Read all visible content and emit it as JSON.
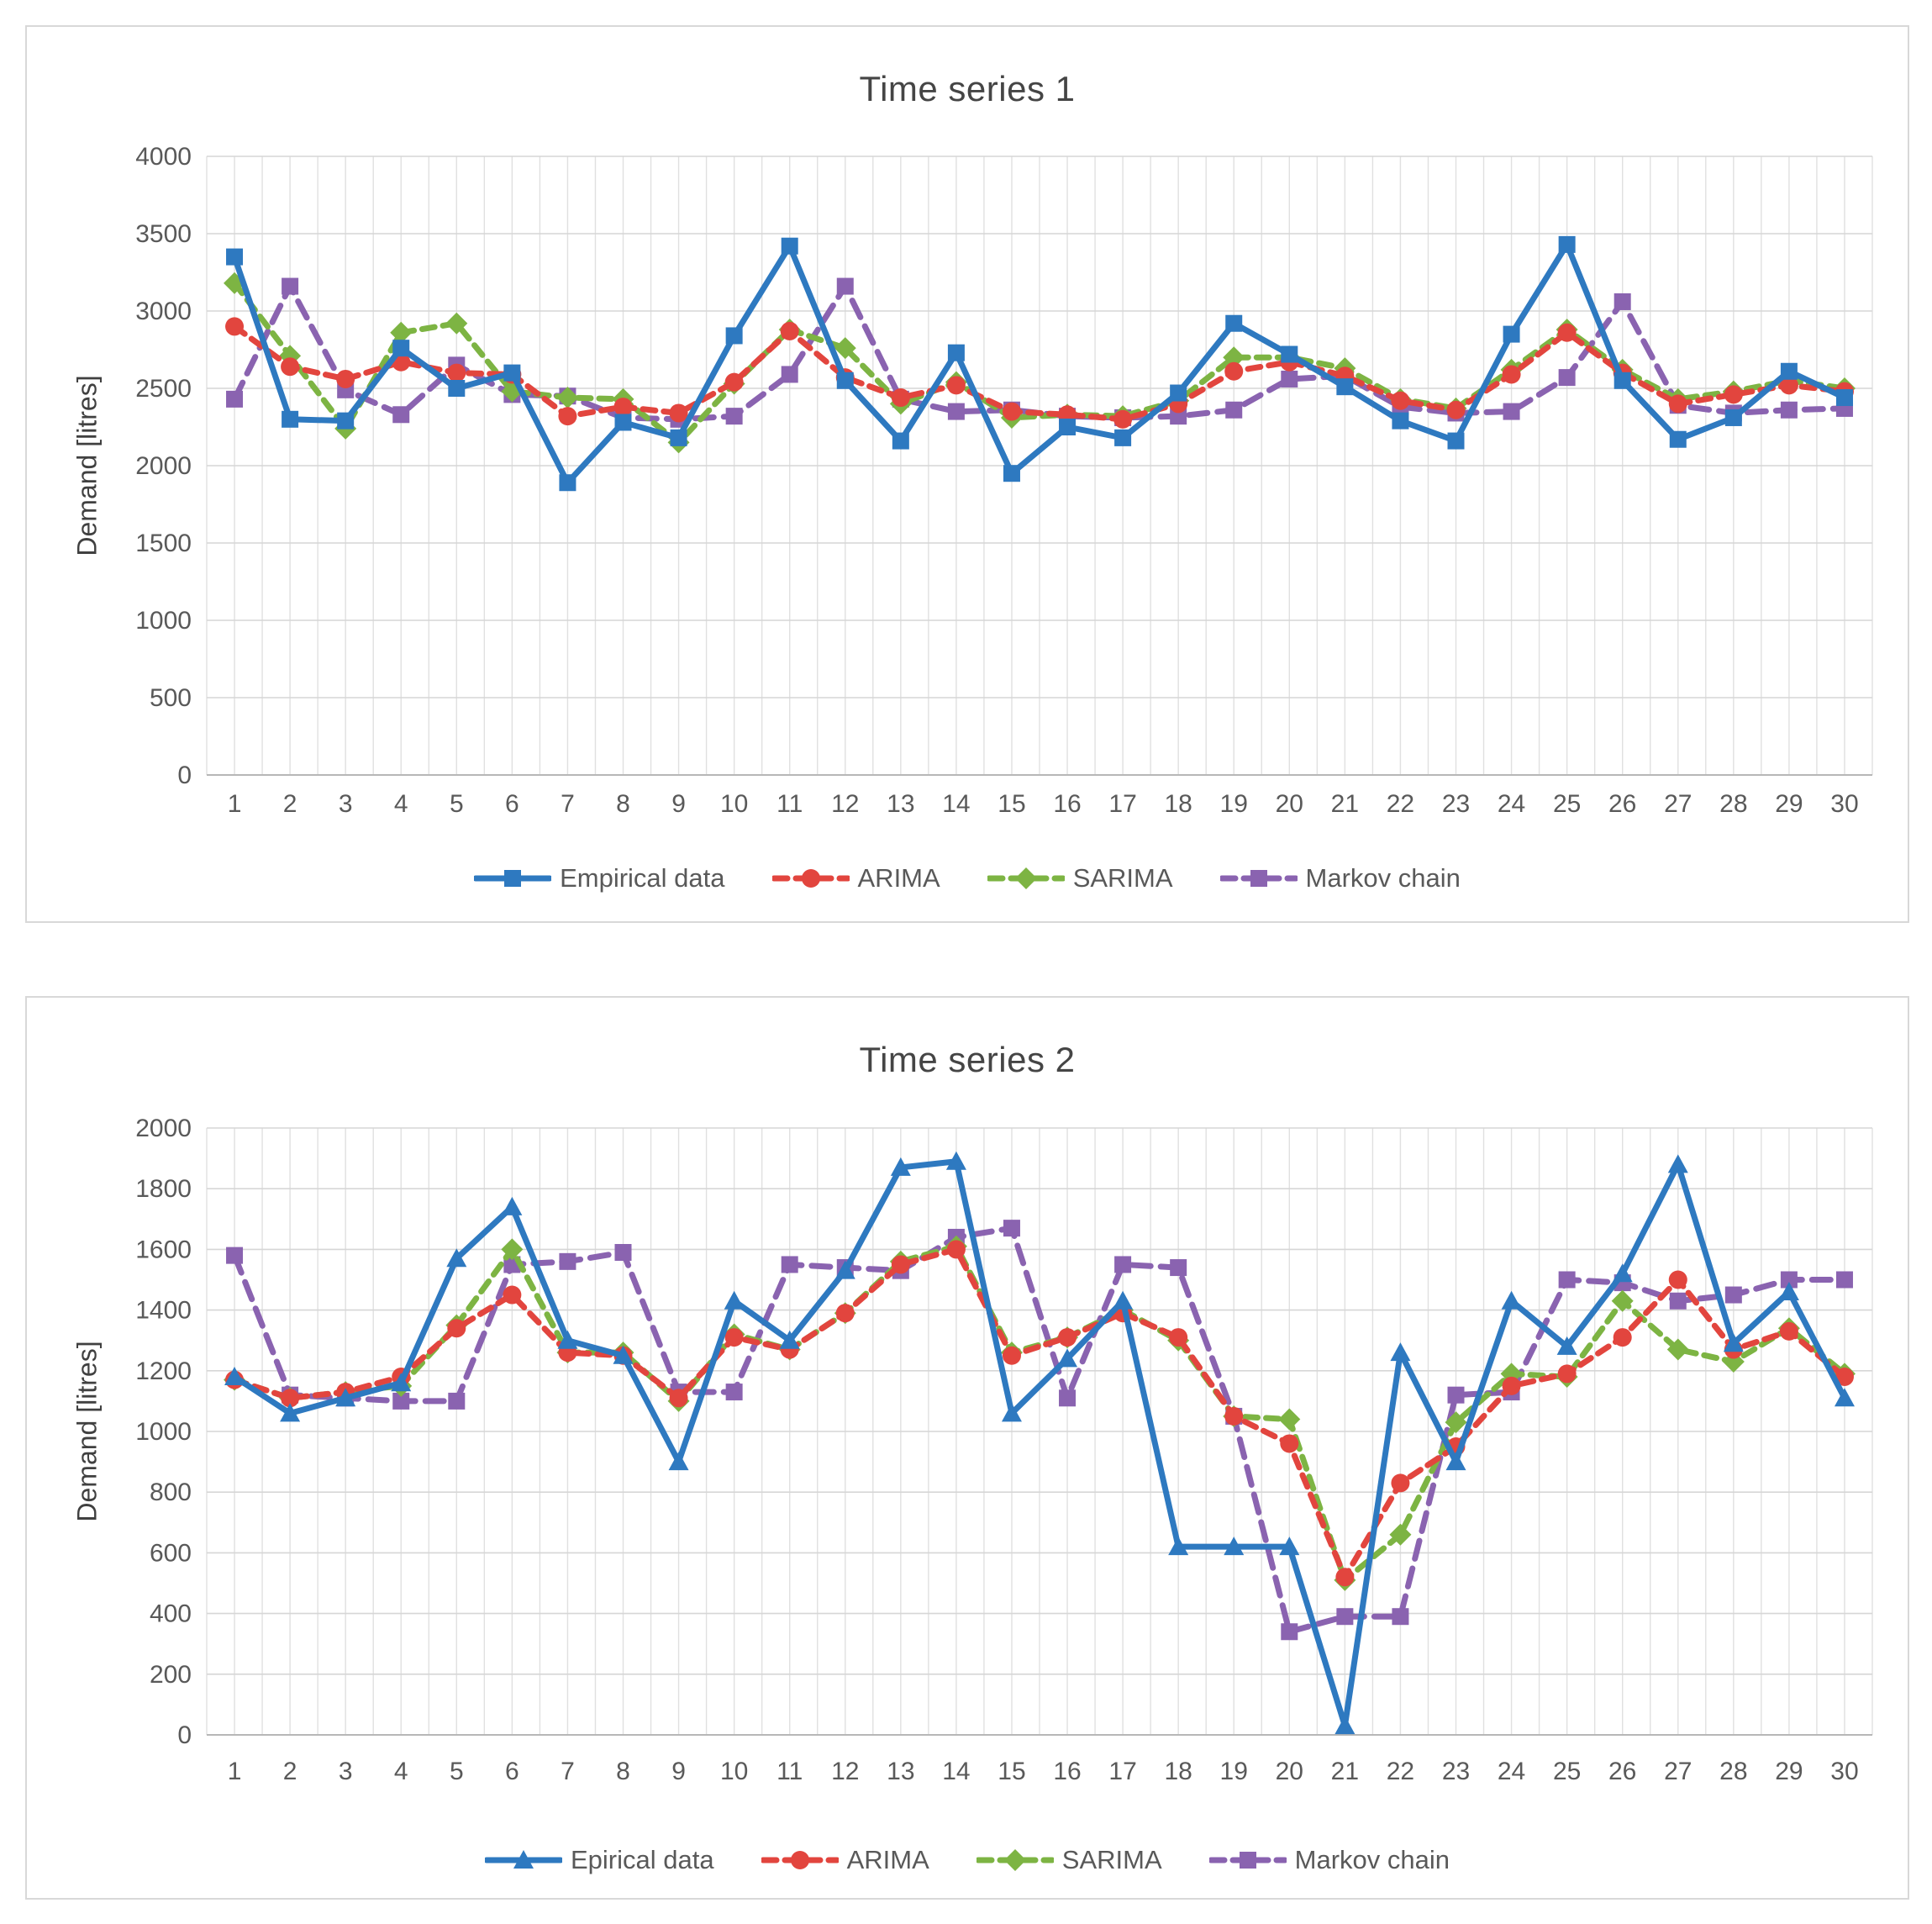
{
  "page": {
    "background": "#ffffff"
  },
  "chart_data": [
    {
      "type": "line",
      "title": "Time series 1",
      "xlabel": "",
      "ylabel": "Demand [litres]",
      "ylim": [
        0,
        4000
      ],
      "ystep": 500,
      "grid": true,
      "legend_position": "bottom",
      "categories": [
        1,
        2,
        3,
        4,
        5,
        6,
        7,
        8,
        9,
        10,
        11,
        12,
        13,
        14,
        15,
        16,
        17,
        18,
        19,
        20,
        21,
        22,
        23,
        24,
        25,
        26,
        27,
        28,
        29,
        30
      ],
      "series": [
        {
          "name": "Empirical data",
          "color": "#2e79c0",
          "marker": "square",
          "dash": null,
          "values": [
            3350,
            2300,
            2290,
            2760,
            2500,
            2600,
            1890,
            2280,
            2180,
            2840,
            3420,
            2550,
            2160,
            2730,
            1950,
            2250,
            2180,
            2470,
            2920,
            2720,
            2510,
            2290,
            2160,
            2850,
            3430,
            2550,
            2170,
            2310,
            2610,
            2440
          ]
        },
        {
          "name": "ARIMA",
          "color": "#e2453e",
          "marker": "circle",
          "dash": [
            15,
            10
          ],
          "values": [
            2900,
            2640,
            2560,
            2670,
            2600,
            2590,
            2320,
            2380,
            2340,
            2540,
            2870,
            2570,
            2440,
            2520,
            2350,
            2330,
            2300,
            2400,
            2610,
            2670,
            2580,
            2420,
            2360,
            2590,
            2860,
            2600,
            2400,
            2460,
            2520,
            2480
          ]
        },
        {
          "name": "SARIMA",
          "color": "#7db443",
          "marker": "diamond",
          "dash": [
            15,
            10
          ],
          "values": [
            3180,
            2710,
            2240,
            2860,
            2920,
            2480,
            2440,
            2430,
            2150,
            2530,
            2880,
            2760,
            2400,
            2540,
            2310,
            2330,
            2320,
            2420,
            2700,
            2700,
            2630,
            2430,
            2370,
            2620,
            2880,
            2620,
            2430,
            2480,
            2550,
            2500
          ]
        },
        {
          "name": "Markov chain",
          "color": "#8a63b0",
          "marker": "square",
          "dash": [
            22,
            12
          ],
          "values": [
            2430,
            3160,
            2490,
            2330,
            2650,
            2460,
            2450,
            2310,
            2300,
            2320,
            2590,
            3160,
            2430,
            2350,
            2360,
            2320,
            2310,
            2320,
            2360,
            2560,
            2580,
            2380,
            2340,
            2350,
            2570,
            3060,
            2390,
            2340,
            2360,
            2370
          ]
        }
      ]
    },
    {
      "type": "line",
      "title": "Time series 2",
      "xlabel": "",
      "ylabel": "Demand [litres]",
      "ylim": [
        0,
        2000
      ],
      "ystep": 200,
      "grid": true,
      "legend_position": "bottom",
      "categories": [
        1,
        2,
        3,
        4,
        5,
        6,
        7,
        8,
        9,
        10,
        11,
        12,
        13,
        14,
        15,
        16,
        17,
        18,
        19,
        20,
        21,
        22,
        23,
        24,
        25,
        26,
        27,
        28,
        29,
        30
      ],
      "series": [
        {
          "name": "Epirical data",
          "color": "#2e79c0",
          "marker": "triangle",
          "dash": null,
          "values": [
            1180,
            1060,
            1110,
            1160,
            1570,
            1740,
            1300,
            1250,
            900,
            1430,
            1300,
            1530,
            1870,
            1890,
            1060,
            1240,
            1430,
            620,
            620,
            620,
            30,
            1260,
            900,
            1430,
            1280,
            1520,
            1880,
            1290,
            1460,
            1110
          ]
        },
        {
          "name": "ARIMA",
          "color": "#e2453e",
          "marker": "circle",
          "dash": [
            15,
            10
          ],
          "values": [
            1170,
            1110,
            1130,
            1180,
            1340,
            1450,
            1260,
            1250,
            1110,
            1310,
            1270,
            1390,
            1550,
            1600,
            1250,
            1310,
            1390,
            1310,
            1050,
            960,
            520,
            830,
            950,
            1150,
            1190,
            1310,
            1500,
            1270,
            1330,
            1180
          ]
        },
        {
          "name": "SARIMA",
          "color": "#7db443",
          "marker": "diamond",
          "dash": [
            15,
            10
          ],
          "values": [
            1170,
            1110,
            1130,
            1150,
            1350,
            1600,
            1260,
            1260,
            1100,
            1320,
            1270,
            1390,
            1560,
            1610,
            1260,
            1310,
            1400,
            1300,
            1050,
            1040,
            510,
            660,
            1030,
            1190,
            1180,
            1430,
            1270,
            1230,
            1340,
            1190
          ]
        },
        {
          "name": "Markov chain",
          "color": "#8a63b0",
          "marker": "square",
          "dash": [
            22,
            12
          ],
          "values": [
            1580,
            1120,
            1110,
            1100,
            1100,
            1550,
            1560,
            1590,
            1130,
            1130,
            1550,
            1540,
            1530,
            1640,
            1670,
            1110,
            1550,
            1540,
            1050,
            340,
            390,
            390,
            1120,
            1130,
            1500,
            1490,
            1430,
            1450,
            1500,
            1500
          ]
        }
      ]
    }
  ]
}
